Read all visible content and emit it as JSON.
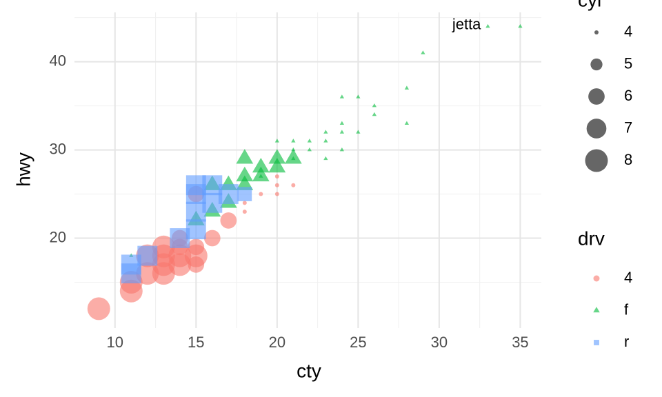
{
  "chart_data": {
    "type": "scatter",
    "x_label": "cty",
    "y_label": "hwy",
    "xlim": [
      7.5,
      36.3
    ],
    "ylim": [
      9.8,
      45.6
    ],
    "xticks": [
      10,
      15,
      20,
      25,
      30,
      35
    ],
    "yticks": [
      20,
      30,
      40
    ],
    "xminorticks": [
      12.5,
      17.5,
      22.5,
      27.5,
      32.5
    ],
    "yminorticks": [
      15,
      25,
      35,
      45
    ],
    "grid": true,
    "alpha": 0.6,
    "size_legend": {
      "title": "cyl",
      "values": [
        4,
        5,
        6,
        7,
        8
      ]
    },
    "color_legend_title": "drv",
    "series": [
      {
        "name": "4",
        "color": "#F8766D",
        "shape": "circle",
        "x": [
          9,
          11,
          11,
          12,
          12,
          13,
          13,
          13,
          13,
          14,
          14,
          14,
          14,
          15,
          15,
          15,
          15,
          16,
          17,
          18,
          18,
          19,
          20,
          20,
          20,
          21
        ],
        "y": [
          12,
          15,
          14,
          16,
          18,
          17,
          16,
          19,
          18,
          17,
          18,
          19,
          20,
          17,
          19,
          18,
          25,
          20,
          22,
          24,
          23,
          25,
          27,
          26,
          25,
          26
        ],
        "size": [
          8,
          8,
          8,
          8,
          8,
          8,
          8,
          8,
          8,
          8,
          8,
          6,
          6,
          6,
          6,
          8,
          6,
          6,
          6,
          4,
          4,
          4,
          4,
          4,
          4,
          4
        ]
      },
      {
        "name": "f",
        "color": "#00BA38",
        "shape": "triangle",
        "x": [
          35,
          33,
          29,
          28,
          28,
          26,
          26,
          25,
          25,
          24,
          24,
          24,
          24,
          23,
          23,
          23,
          22,
          22,
          21,
          21,
          21,
          21,
          20,
          20,
          20,
          19,
          19,
          19,
          18,
          18,
          18,
          17,
          17,
          16,
          16,
          15,
          11
        ],
        "y": [
          44,
          44,
          41,
          37,
          33,
          35,
          34,
          36,
          32,
          36,
          33,
          32,
          30,
          32,
          31,
          29,
          31,
          30,
          31,
          30,
          29,
          29,
          31,
          29,
          28,
          28,
          27,
          27,
          29,
          27,
          26,
          26,
          24,
          26,
          23,
          22,
          18
        ],
        "size": [
          4,
          4,
          4,
          4,
          4,
          4,
          4,
          4,
          4,
          4,
          4,
          4,
          4,
          4,
          4,
          4,
          4,
          4,
          4,
          4,
          4,
          6,
          4,
          6,
          6,
          6,
          6,
          4,
          6,
          6,
          6,
          6,
          6,
          6,
          6,
          6,
          4
        ]
      },
      {
        "name": "r",
        "color": "#619CFF",
        "shape": "square",
        "x": [
          11,
          11,
          12,
          14,
          15,
          15,
          15,
          15,
          16,
          16,
          17,
          18
        ],
        "y": [
          17,
          16,
          18,
          20,
          23,
          25,
          26,
          21,
          26,
          24,
          25,
          25
        ],
        "size": [
          8,
          8,
          8,
          8,
          8,
          8,
          8,
          8,
          8,
          8,
          8,
          6
        ]
      }
    ],
    "annotations": [
      {
        "text": "jetta",
        "x": 33,
        "y": 44
      }
    ]
  }
}
